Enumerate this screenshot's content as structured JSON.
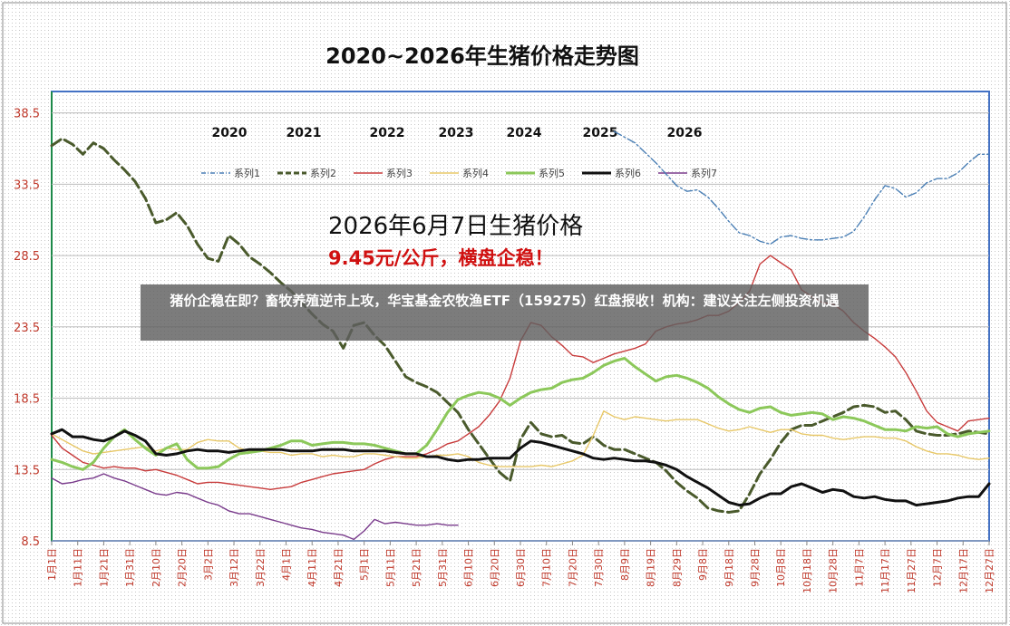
{
  "banner": {
    "text": "猪价企稳在即？畜牧养殖逆市上攻，华宝基金农牧渔ETF（159275）红盘报收！机构：建议关注左侧投资机遇"
  },
  "chart_data": {
    "type": "line",
    "title": "2020~2026年生猪价格走势图",
    "xlabel": "",
    "ylabel": "",
    "ylim": [
      8.5,
      40.0
    ],
    "yticks": [
      8.5,
      13.5,
      18.5,
      23.5,
      28.5,
      33.5,
      38.5
    ],
    "y_tick_labels": [
      "8.5",
      "13.5",
      "18.5",
      "23.5",
      "28.5",
      "33.5",
      "38.5"
    ],
    "x_ticks": [
      "1月1日",
      "1月11日",
      "1月21日",
      "1月31日",
      "2月10日",
      "2月20日",
      "3月2日",
      "3月12日",
      "3月22日",
      "4月1日",
      "4月11日",
      "4月21日",
      "5月1日",
      "5月11日",
      "5月21日",
      "5月31日",
      "6月10日",
      "6月20日",
      "6月30日",
      "7月10日",
      "7月20日",
      "7月30日",
      "8月9日",
      "8月19日",
      "8月29日",
      "9月8日",
      "9月18日",
      "9月28日",
      "10月8日",
      "10月18日",
      "10月28日",
      "11月7日",
      "11月17日",
      "11月27日",
      "12月7日",
      "12月17日",
      "12月27日"
    ],
    "year_labels": [
      "2020",
      "2021",
      "2022",
      "2023",
      "2024",
      "2025",
      "2026"
    ],
    "grid": true,
    "legend_position": "top",
    "annotation": {
      "headline": "2026年6月7日生猪价格",
      "subline": "9.45元/公斤，横盘企稳！"
    },
    "series": [
      {
        "name": "系列1",
        "color": "#4a7fb5",
        "style": "dash-dot",
        "x": [
          216,
          220,
          224,
          228,
          232,
          236,
          240,
          244,
          248,
          252,
          256,
          260,
          264,
          268,
          272,
          276,
          280,
          284,
          288,
          292,
          296,
          300,
          304,
          308,
          312,
          316,
          320,
          324,
          328,
          332,
          336,
          340,
          344,
          348,
          352,
          356,
          360
        ],
        "y": [
          37.2,
          36.8,
          36.4,
          35.7,
          35.0,
          34.2,
          33.4,
          33.0,
          33.1,
          32.6,
          31.8,
          30.9,
          30.1,
          29.9,
          29.5,
          29.3,
          29.8,
          29.9,
          29.7,
          29.6,
          29.6,
          29.7,
          29.8,
          30.2,
          31.2,
          32.4,
          33.4,
          33.2,
          32.6,
          32.9,
          33.6,
          33.9,
          33.9,
          34.3,
          35.0,
          35.6,
          35.6
        ]
      },
      {
        "name": "系列2",
        "color": "#4a5a2c",
        "style": "long-dash",
        "x": [
          0,
          4,
          8,
          12,
          16,
          20,
          24,
          28,
          32,
          36,
          40,
          44,
          48,
          52,
          56,
          60,
          64,
          68,
          72,
          76,
          80,
          84,
          88,
          92,
          96,
          100,
          104,
          108,
          112,
          116,
          120,
          124,
          128,
          132,
          136,
          140,
          144,
          148,
          152,
          156,
          160,
          164,
          168,
          172,
          176,
          180,
          184,
          188,
          192,
          196,
          200,
          204,
          208,
          212,
          216,
          220,
          224,
          228,
          232,
          236,
          240,
          244,
          248,
          252,
          256,
          260,
          264,
          268,
          272,
          276,
          280,
          284,
          288,
          292,
          296,
          300,
          304,
          308,
          312,
          316,
          320,
          324,
          328,
          332,
          336,
          340,
          344,
          348,
          352,
          356,
          360
        ],
        "y": [
          36.2,
          36.7,
          36.3,
          35.6,
          36.4,
          36.0,
          35.2,
          34.5,
          33.7,
          32.5,
          30.8,
          31.0,
          31.5,
          30.6,
          29.3,
          28.3,
          28.1,
          29.9,
          29.3,
          28.4,
          27.9,
          27.3,
          26.6,
          26.0,
          25.2,
          24.4,
          23.7,
          23.2,
          22.0,
          23.6,
          23.8,
          22.9,
          22.2,
          21.1,
          20.0,
          19.6,
          19.3,
          18.9,
          18.2,
          17.5,
          16.3,
          15.3,
          14.3,
          13.3,
          12.7,
          15.6,
          16.8,
          16.0,
          15.8,
          15.9,
          15.4,
          15.3,
          15.8,
          15.2,
          14.9,
          14.9,
          14.6,
          14.3,
          14.0,
          13.4,
          12.6,
          12.0,
          11.5,
          10.8,
          10.6,
          10.5,
          10.6,
          11.8,
          13.2,
          14.2,
          15.4,
          16.3,
          16.6,
          16.6,
          16.9,
          17.2,
          17.5,
          17.9,
          18.0,
          17.9,
          17.5,
          17.6,
          17.0,
          16.2,
          16.0,
          15.9,
          15.9,
          16.0,
          16.2,
          16.1,
          16.0
        ]
      },
      {
        "name": "系列3",
        "color": "#c83c3c",
        "style": "solid",
        "x": [
          0,
          4,
          8,
          12,
          16,
          20,
          24,
          28,
          32,
          36,
          40,
          44,
          48,
          52,
          56,
          60,
          64,
          68,
          72,
          76,
          80,
          84,
          88,
          92,
          96,
          100,
          104,
          108,
          112,
          116,
          120,
          124,
          128,
          132,
          136,
          140,
          144,
          148,
          152,
          156,
          160,
          164,
          168,
          172,
          176,
          180,
          184,
          188,
          192,
          196,
          200,
          204,
          208,
          212,
          216,
          220,
          224,
          228,
          232,
          236,
          240,
          244,
          248,
          252,
          256,
          260,
          264,
          268,
          272,
          276,
          280,
          284,
          288,
          292,
          296,
          300,
          304,
          308,
          312,
          316,
          320,
          324,
          328,
          332,
          336,
          340,
          344,
          348,
          352,
          356,
          360
        ],
        "y": [
          15.9,
          15.0,
          14.5,
          14.0,
          13.8,
          13.6,
          13.7,
          13.6,
          13.6,
          13.4,
          13.5,
          13.3,
          13.1,
          12.8,
          12.5,
          12.6,
          12.6,
          12.5,
          12.4,
          12.3,
          12.2,
          12.1,
          12.2,
          12.3,
          12.6,
          12.8,
          13.0,
          13.2,
          13.3,
          13.4,
          13.5,
          13.9,
          14.2,
          14.4,
          14.4,
          14.4,
          14.6,
          14.9,
          15.3,
          15.5,
          16.0,
          16.5,
          17.3,
          18.3,
          19.9,
          22.5,
          23.8,
          23.6,
          22.8,
          22.2,
          21.5,
          21.4,
          21.0,
          21.3,
          21.6,
          21.8,
          22.0,
          22.3,
          23.2,
          23.5,
          23.7,
          23.8,
          24.0,
          24.3,
          24.3,
          24.6,
          25.2,
          26.0,
          27.9,
          28.5,
          28.0,
          27.5,
          26.1,
          25.6,
          25.2,
          25.1,
          24.6,
          23.8,
          23.2,
          22.7,
          22.1,
          21.4,
          20.3,
          19.0,
          17.6,
          16.8,
          16.5,
          16.2,
          16.9,
          17.0,
          17.1
        ]
      },
      {
        "name": "系列4",
        "color": "#e8c868",
        "style": "solid",
        "x": [
          0,
          4,
          8,
          12,
          16,
          20,
          24,
          28,
          32,
          36,
          40,
          44,
          48,
          52,
          56,
          60,
          64,
          68,
          72,
          76,
          80,
          84,
          88,
          92,
          96,
          100,
          104,
          108,
          112,
          116,
          120,
          124,
          128,
          132,
          136,
          140,
          144,
          148,
          152,
          156,
          160,
          164,
          168,
          172,
          176,
          180,
          184,
          188,
          192,
          196,
          200,
          204,
          208,
          212,
          216,
          220,
          224,
          228,
          232,
          236,
          240,
          244,
          248,
          252,
          256,
          260,
          264,
          268,
          272,
          276,
          280,
          284,
          288,
          292,
          296,
          300,
          304,
          308,
          312,
          316,
          320,
          324,
          328,
          332,
          336,
          340,
          344,
          348,
          352,
          356,
          360
        ],
        "y": [
          16.0,
          15.6,
          15.2,
          14.8,
          14.6,
          14.7,
          14.8,
          14.9,
          15.0,
          15.1,
          14.8,
          15.0,
          14.9,
          14.9,
          15.4,
          15.6,
          15.5,
          15.5,
          15.0,
          14.8,
          14.8,
          14.7,
          14.7,
          14.5,
          14.6,
          14.6,
          14.4,
          14.5,
          14.4,
          14.4,
          14.6,
          14.6,
          14.5,
          14.4,
          14.3,
          14.3,
          14.4,
          14.5,
          14.5,
          14.6,
          14.4,
          14.0,
          13.8,
          13.7,
          13.7,
          13.7,
          13.7,
          13.8,
          13.7,
          13.9,
          14.1,
          14.5,
          15.9,
          17.6,
          17.2,
          17.0,
          17.2,
          17.1,
          17.0,
          16.9,
          17.0,
          17.0,
          17.0,
          16.7,
          16.4,
          16.2,
          16.3,
          16.5,
          16.3,
          16.1,
          16.3,
          16.3,
          16.0,
          15.9,
          15.9,
          15.7,
          15.6,
          15.7,
          15.8,
          15.8,
          15.7,
          15.7,
          15.5,
          15.1,
          14.8,
          14.6,
          14.6,
          14.5,
          14.3,
          14.2,
          14.3
        ]
      },
      {
        "name": "系列5",
        "color": "#8cc85a",
        "style": "solid",
        "x": [
          0,
          4,
          8,
          12,
          16,
          20,
          24,
          28,
          32,
          36,
          40,
          44,
          48,
          52,
          56,
          60,
          64,
          68,
          72,
          76,
          80,
          84,
          88,
          92,
          96,
          100,
          104,
          108,
          112,
          116,
          120,
          124,
          128,
          132,
          136,
          140,
          144,
          148,
          152,
          156,
          160,
          164,
          168,
          172,
          176,
          180,
          184,
          188,
          192,
          196,
          200,
          204,
          208,
          212,
          216,
          220,
          224,
          228,
          232,
          236,
          240,
          244,
          248,
          252,
          256,
          260,
          264,
          268,
          272,
          276,
          280,
          284,
          288,
          292,
          296,
          300,
          304,
          308,
          312,
          316,
          320,
          324,
          328,
          332,
          336,
          340,
          344,
          348,
          352,
          356,
          360
        ],
        "y": [
          14.2,
          14.0,
          13.7,
          13.5,
          14.0,
          15.0,
          15.8,
          16.3,
          15.6,
          15.0,
          14.5,
          15.0,
          15.3,
          14.2,
          13.6,
          13.6,
          13.7,
          14.2,
          14.6,
          14.7,
          14.8,
          15.0,
          15.2,
          15.5,
          15.5,
          15.2,
          15.3,
          15.4,
          15.4,
          15.3,
          15.3,
          15.2,
          15.0,
          14.8,
          14.6,
          14.6,
          15.2,
          16.3,
          17.5,
          18.4,
          18.7,
          18.9,
          18.8,
          18.5,
          18.0,
          18.5,
          18.9,
          19.1,
          19.2,
          19.6,
          19.8,
          19.9,
          20.3,
          20.8,
          21.1,
          21.3,
          20.7,
          20.2,
          19.7,
          20.0,
          20.1,
          19.9,
          19.6,
          19.2,
          18.6,
          18.1,
          17.7,
          17.5,
          17.8,
          17.9,
          17.5,
          17.3,
          17.4,
          17.5,
          17.4,
          17.0,
          17.2,
          17.1,
          16.9,
          16.6,
          16.3,
          16.3,
          16.2,
          16.5,
          16.4,
          16.5,
          16.0,
          15.8,
          16.0,
          16.1,
          16.2
        ]
      },
      {
        "name": "系列6",
        "color": "#111111",
        "style": "solid",
        "x": [
          0,
          4,
          8,
          12,
          16,
          20,
          24,
          28,
          32,
          36,
          40,
          44,
          48,
          52,
          56,
          60,
          64,
          68,
          72,
          76,
          80,
          84,
          88,
          92,
          96,
          100,
          104,
          108,
          112,
          116,
          120,
          124,
          128,
          132,
          136,
          140,
          144,
          148,
          152,
          156,
          160,
          164,
          168,
          172,
          176,
          180,
          184,
          188,
          192,
          196,
          200,
          204,
          208,
          212,
          216,
          220,
          224,
          228,
          232,
          236,
          240,
          244,
          248,
          252,
          256,
          260,
          264,
          268,
          272,
          276,
          280,
          284,
          288,
          292,
          296,
          300,
          304,
          308,
          312,
          316,
          320,
          324,
          328,
          332,
          336,
          340,
          344,
          348,
          352,
          356,
          360
        ],
        "y": [
          16.0,
          16.3,
          15.8,
          15.8,
          15.6,
          15.5,
          15.8,
          16.2,
          15.9,
          15.5,
          14.6,
          14.5,
          14.6,
          14.8,
          14.9,
          14.8,
          14.8,
          14.7,
          14.8,
          14.9,
          14.9,
          14.9,
          14.9,
          14.8,
          14.8,
          14.8,
          14.9,
          14.9,
          14.9,
          14.8,
          14.8,
          14.8,
          14.8,
          14.7,
          14.6,
          14.6,
          14.4,
          14.4,
          14.2,
          14.1,
          14.2,
          14.2,
          14.3,
          14.3,
          14.3,
          15.0,
          15.5,
          15.4,
          15.2,
          15.0,
          14.8,
          14.6,
          14.3,
          14.2,
          14.3,
          14.2,
          14.1,
          14.1,
          14.0,
          13.8,
          13.5,
          13.0,
          12.6,
          12.2,
          11.7,
          11.2,
          11.0,
          11.1,
          11.5,
          11.8,
          11.8,
          12.3,
          12.5,
          12.2,
          11.9,
          12.1,
          12.0,
          11.6,
          11.5,
          11.6,
          11.4,
          11.3,
          11.3,
          11.0,
          11.1,
          11.2,
          11.3,
          11.5,
          11.6,
          11.6,
          12.5
        ]
      },
      {
        "name": "系列7",
        "color": "#7a3c8c",
        "style": "solid",
        "x": [
          0,
          4,
          8,
          12,
          16,
          20,
          24,
          28,
          32,
          36,
          40,
          44,
          48,
          52,
          56,
          60,
          64,
          68,
          72,
          76,
          80,
          84,
          88,
          92,
          96,
          100,
          104,
          108,
          112,
          116,
          120,
          124,
          128,
          132,
          136,
          140,
          144,
          148,
          152,
          156
        ],
        "y": [
          12.9,
          12.5,
          12.6,
          12.8,
          12.9,
          13.2,
          12.9,
          12.7,
          12.4,
          12.1,
          11.8,
          11.7,
          11.9,
          11.8,
          11.5,
          11.2,
          11.0,
          10.6,
          10.4,
          10.4,
          10.2,
          10.0,
          9.8,
          9.6,
          9.4,
          9.3,
          9.1,
          9.0,
          8.9,
          8.6,
          9.2,
          10.0,
          9.7,
          9.8,
          9.7,
          9.6,
          9.6,
          9.7,
          9.6,
          9.6
        ]
      }
    ]
  }
}
